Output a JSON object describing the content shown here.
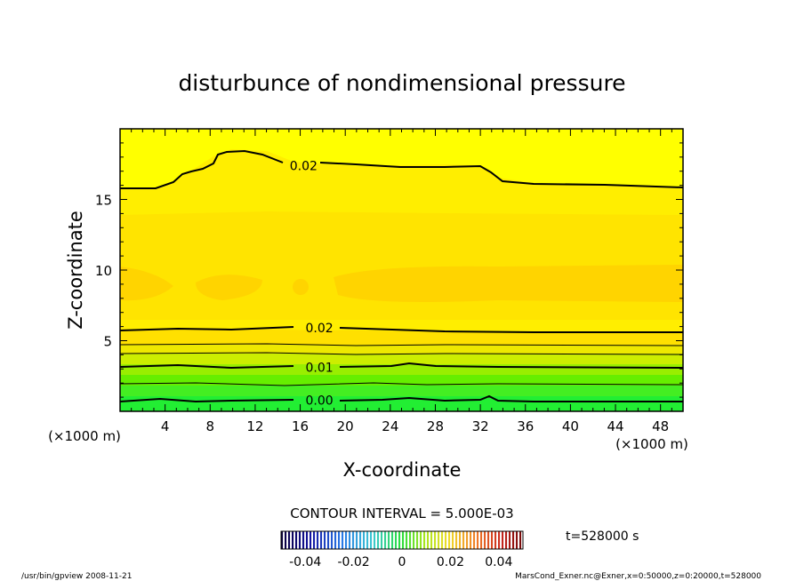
{
  "chart_data": {
    "type": "heatmap",
    "title": "disturbunce of nondimensional pressure",
    "xlabel": "X-coordinate",
    "ylabel": "Z-coordinate",
    "x_unit": "(×1000 m)",
    "y_unit": "(×1000 m)",
    "xlim": [
      0,
      50
    ],
    "ylim": [
      0,
      20
    ],
    "x_ticks": [
      "4",
      "8",
      "12",
      "16",
      "20",
      "24",
      "28",
      "32",
      "36",
      "40",
      "44",
      "48"
    ],
    "y_ticks": [
      "5",
      "10",
      "15"
    ],
    "contour_labels": [
      {
        "text": "0.02",
        "x": 16.3,
        "z": 17.4
      },
      {
        "text": "0.02",
        "x": 17.7,
        "z": 5.9
      },
      {
        "text": "0.01",
        "x": 17.7,
        "z": 3.1
      },
      {
        "text": "0.00",
        "x": 17.7,
        "z": 0.8
      }
    ],
    "contour_interval_text": "CONTOUR INTERVAL = 5.000E-03",
    "colorbar": {
      "range": [
        -0.05,
        0.05
      ],
      "tick_labels": [
        "-0.04",
        "-0.02",
        "0",
        "0.02",
        "0.04"
      ],
      "tick_values": [
        -0.04,
        -0.02,
        0,
        0.02,
        0.04
      ]
    },
    "time_text": "t=528000 s",
    "footer_left": "/usr/bin/gpview  2008-11-21",
    "footer_right": "MarsCond_Exner.nc@Exner,x=0:50000,z=0:20000,t=528000",
    "colors": {
      "top": "#ffff00",
      "upper": "#ffee00",
      "middle": "#ffdd00",
      "core": "#ffd000",
      "lower": "#ddee00",
      "green1": "#aaee00",
      "green2": "#66ee00",
      "green3": "#22ee22"
    }
  }
}
